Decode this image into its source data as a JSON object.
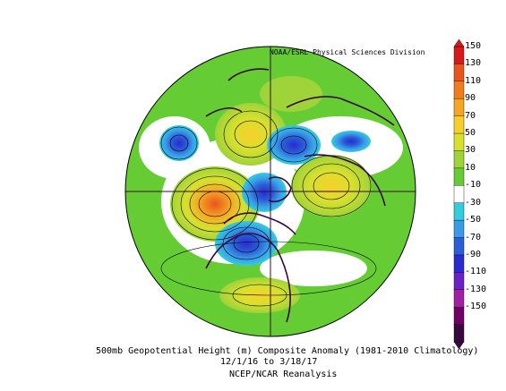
{
  "credit": "NOAA/ESRL Physical Sciences Division",
  "title": {
    "line1": "500mb Geopotential Height (m) Composite Anomaly (1981-2010 Climatology)",
    "line2": "12/1/16  to 3/18/17",
    "line3": "NCEP/NCAR Reanalysis"
  },
  "colorbar": {
    "labels": [
      "150",
      "130",
      "110",
      "90",
      "70",
      "50",
      "30",
      "10",
      "-10",
      "-30",
      "-50",
      "-70",
      "-90",
      "-110",
      "-130",
      "-150"
    ],
    "colors": [
      "#d7191c",
      "#e8541d",
      "#f07d1b",
      "#f6a623",
      "#f7cf2b",
      "#d8e02e",
      "#9ed33a",
      "#66cc33",
      "#ffffff",
      "#33ccdd",
      "#3a9be8",
      "#2a5fd6",
      "#2a2ad0",
      "#6a22c8",
      "#a020a0",
      "#700068",
      "#3a0840"
    ]
  }
}
